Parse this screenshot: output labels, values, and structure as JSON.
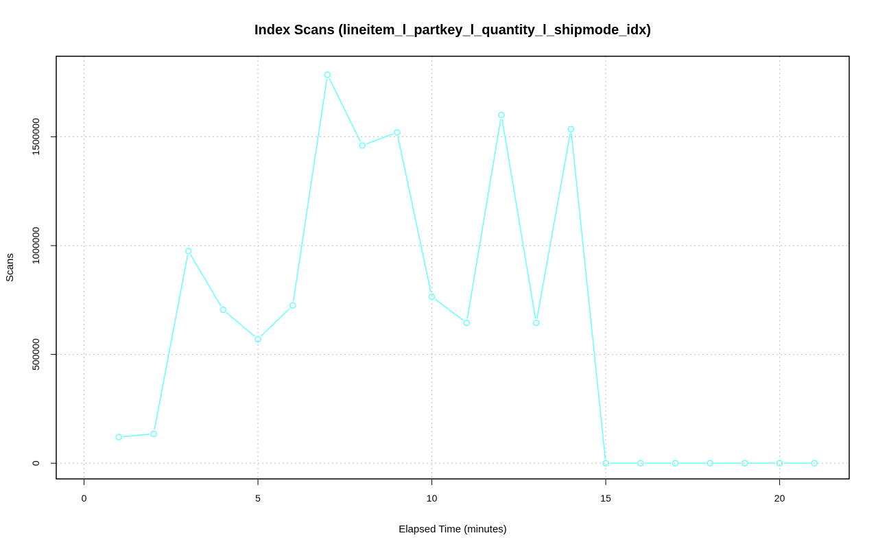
{
  "chart_data": {
    "type": "line",
    "title": "Index Scans (lineitem_l_partkey_l_quantity_l_shipmode_idx)",
    "xlabel": "Elapsed Time (minutes)",
    "ylabel": "Scans",
    "xlim": [
      -0.8,
      22.0
    ],
    "ylim": [
      -72000,
      1870000
    ],
    "x_ticks": [
      0,
      5,
      10,
      15,
      20
    ],
    "x_tick_labels": [
      "0",
      "5",
      "10",
      "15",
      "20"
    ],
    "y_ticks": [
      0,
      500000,
      1000000,
      1500000
    ],
    "y_tick_labels": [
      "0",
      "500000",
      "1000000",
      "1500000"
    ],
    "grid": true,
    "series": [
      {
        "color": "#66FFFF",
        "marker": "open-circle",
        "x": [
          1,
          2,
          3,
          4,
          5,
          6,
          7,
          8,
          9,
          10,
          11,
          12,
          13,
          14,
          15,
          16,
          17,
          18,
          19,
          20,
          21
        ],
        "values": [
          120000,
          135000,
          975000,
          705000,
          570000,
          725000,
          1785000,
          1460000,
          1520000,
          765000,
          645000,
          1600000,
          645000,
          1535000,
          0,
          0,
          0,
          0,
          0,
          0,
          0
        ]
      }
    ]
  }
}
